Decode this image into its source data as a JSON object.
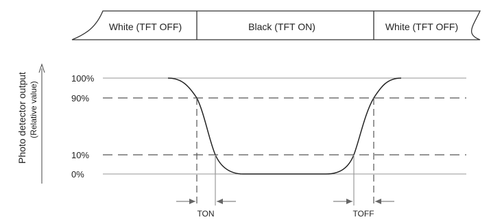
{
  "banner": {
    "states": [
      "White (TFT OFF)",
      "Black (TFT ON)",
      "White (TFT OFF)"
    ]
  },
  "axis": {
    "ylabel": "Photo detector output",
    "ylabel_sub": "(Relative value)",
    "ticks": [
      "100%",
      "90%",
      "10%",
      "0%"
    ]
  },
  "timing": {
    "t_on": "TON",
    "t_off": "TOFF"
  }
}
